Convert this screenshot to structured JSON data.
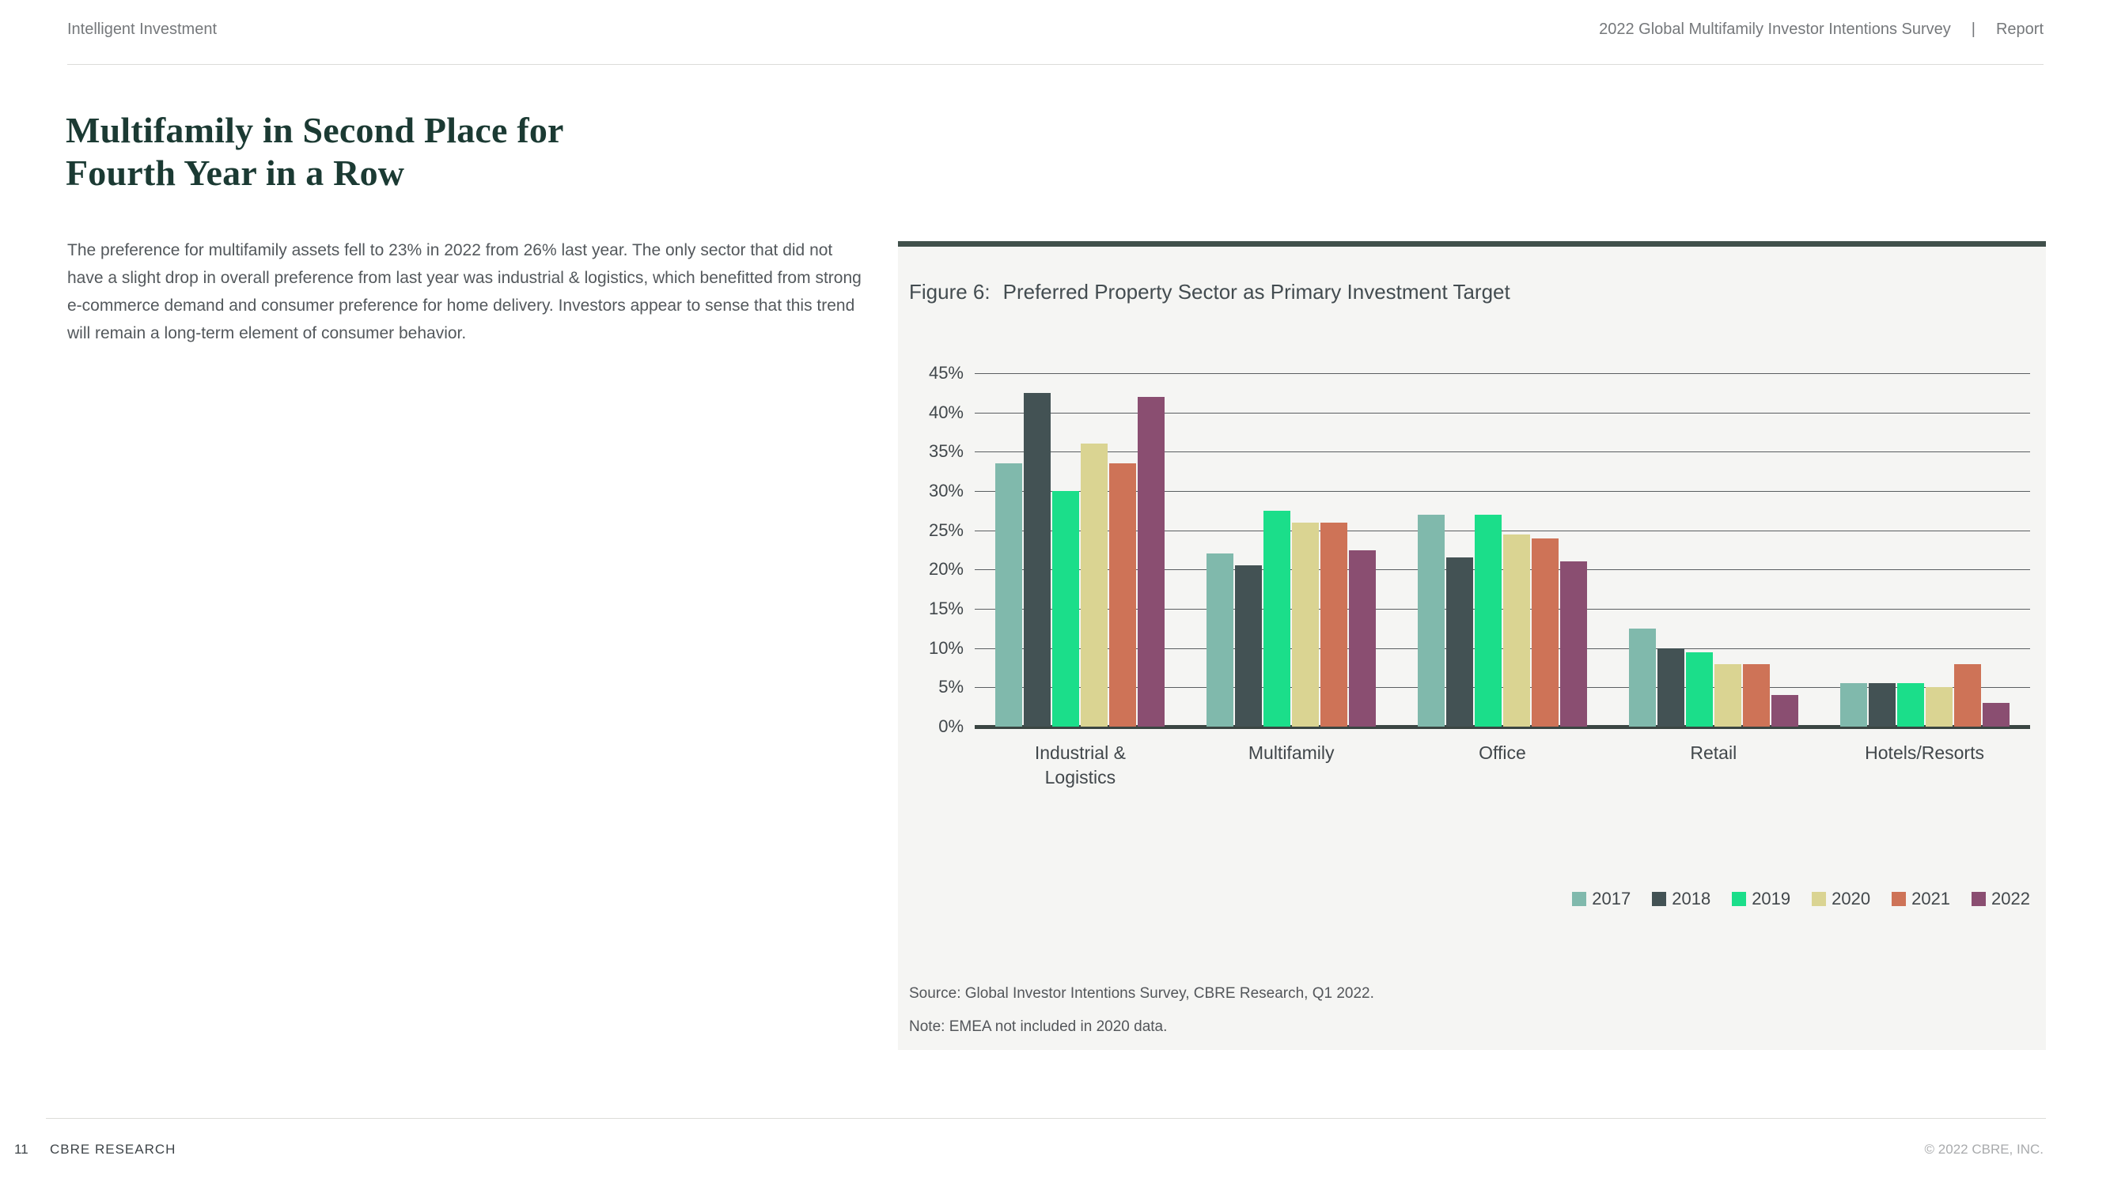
{
  "header": {
    "left": "Intelligent Investment",
    "right_title": "2022 Global Multifamily Investor Intentions Survey",
    "divider": "|",
    "right_label": "Report"
  },
  "article": {
    "title_line1": "Multifamily in Second Place for",
    "title_line2": "Fourth Year in a Row",
    "body": "The preference for multifamily assets fell to 23% in 2022 from 26% last year. The only sector that did not have a slight drop in overall preference from last year was industrial & logistics, which benefitted from strong e-commerce demand and consumer preference for home delivery. Investors appear to sense that this trend will remain a long-term element of consumer behavior."
  },
  "figure": {
    "label": "Figure 6:",
    "title": "Preferred Property Sector as Primary Investment Target",
    "source": "Source: Global Investor Intentions Survey, CBRE Research, Q1 2022.",
    "note": "Note: EMEA not included in 2020 data."
  },
  "chart_data": {
    "type": "bar",
    "title": "Figure 6: Preferred Property Sector as Primary Investment Target",
    "categories": [
      "Industrial & Logistics",
      "Multifamily",
      "Office",
      "Retail",
      "Hotels/Resorts"
    ],
    "series": [
      {
        "name": "2017",
        "color": "#80B9AC",
        "values": [
          33.5,
          22,
          27,
          12.5,
          5.5
        ]
      },
      {
        "name": "2018",
        "color": "#435254",
        "values": [
          42.5,
          20.5,
          21.5,
          10,
          5.5
        ]
      },
      {
        "name": "2019",
        "color": "#1BDE8A",
        "values": [
          30,
          27.5,
          27,
          9.5,
          5.5
        ]
      },
      {
        "name": "2020",
        "color": "#DAD492",
        "values": [
          36,
          26,
          24.5,
          8,
          5
        ]
      },
      {
        "name": "2021",
        "color": "#CE7357",
        "values": [
          33.5,
          26,
          24,
          8,
          8
        ]
      },
      {
        "name": "2022",
        "color": "#8A4E71",
        "values": [
          42,
          22.5,
          21,
          4,
          3
        ]
      }
    ],
    "ylabel": "",
    "xlabel": "",
    "ylim": [
      0,
      45
    ],
    "y_ticks": [
      45,
      40,
      35,
      30,
      25,
      20,
      15,
      10,
      5,
      0
    ],
    "y_tick_suffix": "%",
    "grid": true,
    "legend_position": "bottom-right"
  },
  "footer": {
    "page_number": "11",
    "left": "CBRE RESEARCH",
    "right": "© 2022 CBRE, INC."
  }
}
